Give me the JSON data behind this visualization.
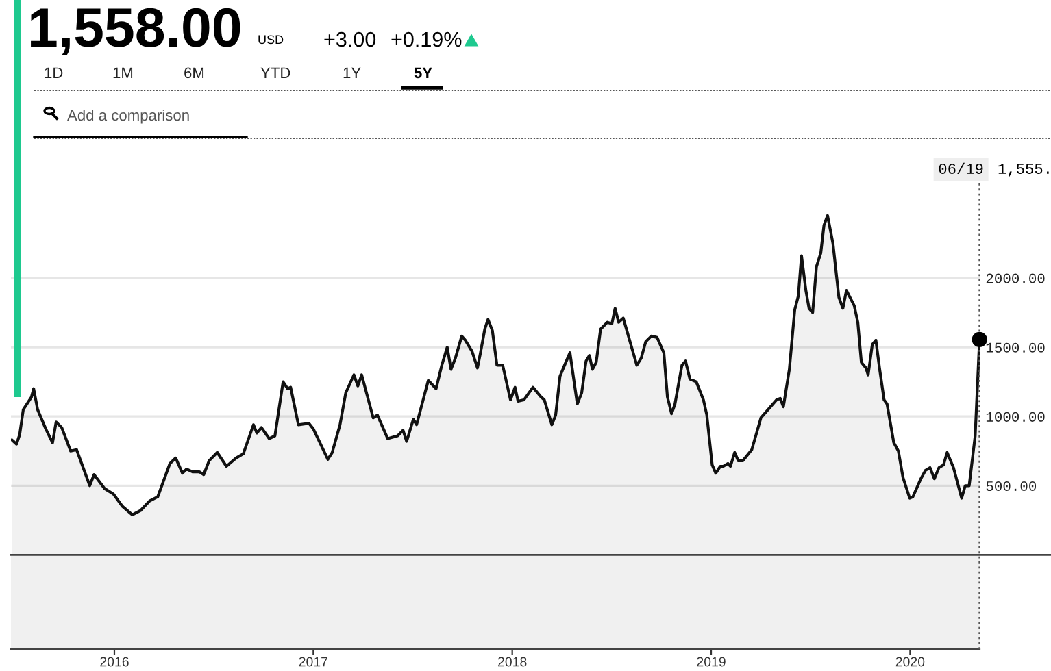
{
  "chart_data": {
    "type": "area",
    "title": "1,558.00",
    "annotations": [
      "USD",
      "+3.00",
      "+0.19%",
      "1D",
      "1M",
      "6M",
      "YTD",
      "1Y",
      "5Y",
      "Add a comparison",
      "1,555.",
      "06/19"
    ],
    "series": [
      {
        "color": "#111111",
        "x": [
          2015.485,
          2015.508,
          2015.524,
          2015.542,
          2015.583,
          2015.594,
          2015.614,
          2015.655,
          2015.689,
          2015.707,
          2015.735,
          2015.78,
          2015.81,
          2015.876,
          2015.898,
          2015.95,
          2015.995,
          2016.041,
          2016.09,
          2016.131,
          2016.177,
          2016.218,
          2016.279,
          2016.308,
          2016.342,
          2016.363,
          2016.393,
          2016.427,
          2016.449,
          2016.476,
          2016.517,
          2016.563,
          2016.612,
          2016.648,
          2016.665,
          2016.699,
          2016.716,
          2016.739,
          2016.778,
          2016.807,
          2016.848,
          2016.871,
          2016.886,
          2016.925,
          2016.978,
          2017.0,
          2017.073,
          2017.095,
          2017.134,
          2017.163,
          2017.204,
          2017.224,
          2017.243,
          2017.301,
          2017.322,
          2017.374,
          2017.424,
          2017.451,
          2017.469,
          2017.503,
          2017.519,
          2017.578,
          2017.617,
          2017.646,
          2017.673,
          2017.692,
          2017.714,
          2017.746,
          2017.764,
          2017.798,
          2017.825,
          2017.839,
          2017.862,
          2017.878,
          2017.9,
          2017.923,
          2017.952,
          2017.991,
          2018.014,
          2018.029,
          2018.059,
          2018.104,
          2018.145,
          2018.161,
          2018.199,
          2018.218,
          2018.24,
          2018.263,
          2018.29,
          2018.327,
          2018.349,
          2018.371,
          2018.388,
          2018.403,
          2018.422,
          2018.444,
          2018.478,
          2018.501,
          2018.517,
          2018.535,
          2018.558,
          2018.626,
          2018.648,
          2018.671,
          2018.699,
          2018.728,
          2018.762,
          2018.78,
          2018.801,
          2018.818,
          2018.853,
          2018.871,
          2018.893,
          2018.925,
          2018.961,
          2018.978,
          2019.005,
          2019.023,
          2019.046,
          2019.061,
          2019.084,
          2019.097,
          2019.118,
          2019.136,
          2019.159,
          2019.204,
          2019.25,
          2019.329,
          2019.347,
          2019.363,
          2019.393,
          2019.42,
          2019.438,
          2019.454,
          2019.476,
          2019.492,
          2019.51,
          2019.529,
          2019.551,
          2019.567,
          2019.585,
          2019.612,
          2019.642,
          2019.662,
          2019.68,
          2019.719,
          2019.737,
          2019.755,
          2019.778,
          2019.789,
          2019.81,
          2019.828,
          2019.846,
          2019.869,
          2019.884,
          2019.918,
          2019.941,
          2019.964,
          2019.998,
          2020.014,
          2020.054,
          2020.077,
          2020.1,
          2020.122,
          2020.145,
          2020.168,
          2020.186,
          2020.218,
          2020.259,
          2020.277,
          2020.297,
          2020.327,
          2020.349
        ],
        "values": [
          830,
          800,
          870,
          1050,
          1140,
          1200,
          1050,
          910,
          810,
          960,
          920,
          750,
          760,
          500,
          580,
          480,
          440,
          350,
          290,
          320,
          390,
          420,
          660,
          700,
          590,
          620,
          600,
          600,
          580,
          680,
          740,
          640,
          700,
          730,
          800,
          940,
          880,
          920,
          840,
          860,
          1250,
          1200,
          1210,
          940,
          950,
          910,
          690,
          740,
          940,
          1170,
          1300,
          1220,
          1300,
          990,
          1010,
          840,
          860,
          900,
          820,
          980,
          940,
          1260,
          1200,
          1370,
          1500,
          1340,
          1420,
          1580,
          1550,
          1470,
          1350,
          1450,
          1630,
          1700,
          1620,
          1370,
          1370,
          1120,
          1210,
          1110,
          1120,
          1210,
          1140,
          1120,
          940,
          1010,
          1290,
          1370,
          1460,
          1090,
          1170,
          1400,
          1440,
          1340,
          1390,
          1630,
          1680,
          1670,
          1780,
          1680,
          1710,
          1370,
          1420,
          1540,
          1580,
          1570,
          1460,
          1140,
          1020,
          1090,
          1370,
          1400,
          1270,
          1250,
          1120,
          1010,
          650,
          590,
          640,
          640,
          660,
          640,
          740,
          680,
          680,
          760,
          990,
          1120,
          1130,
          1070,
          1340,
          1770,
          1870,
          2160,
          1910,
          1780,
          1750,
          2080,
          2180,
          2380,
          2450,
          2250,
          1860,
          1780,
          1910,
          1800,
          1680,
          1390,
          1350,
          1300,
          1520,
          1550,
          1350,
          1120,
          1090,
          810,
          750,
          560,
          410,
          420,
          550,
          610,
          630,
          550,
          630,
          650,
          740,
          630,
          410,
          500,
          500,
          860,
          1555
        ]
      },
      {
        "type": "scatter",
        "color": "#000000",
        "marker": "circle",
        "x": [
          2020.349
        ],
        "values": [
          1555
        ]
      }
    ],
    "xlim": [
      2015.48,
      2020.35
    ],
    "xticks": [
      2016,
      2017,
      2018,
      2019,
      2020
    ],
    "ylim": [
      -680,
      2840
    ],
    "yticks": [
      {
        "value": 500,
        "label": "500.00"
      },
      {
        "value": 1000,
        "label": "1000.00"
      },
      {
        "value": 1500,
        "label": "1500.00"
      },
      {
        "value": 2000,
        "label": "2000.00"
      }
    ],
    "grid": "y",
    "ref_lines": [
      {
        "axis": "x",
        "value": 2020.349,
        "color": "#555555",
        "line_style": "dotted"
      },
      {
        "axis": "y",
        "value": 0,
        "color": "#444444",
        "line_style": "solid"
      }
    ]
  }
}
